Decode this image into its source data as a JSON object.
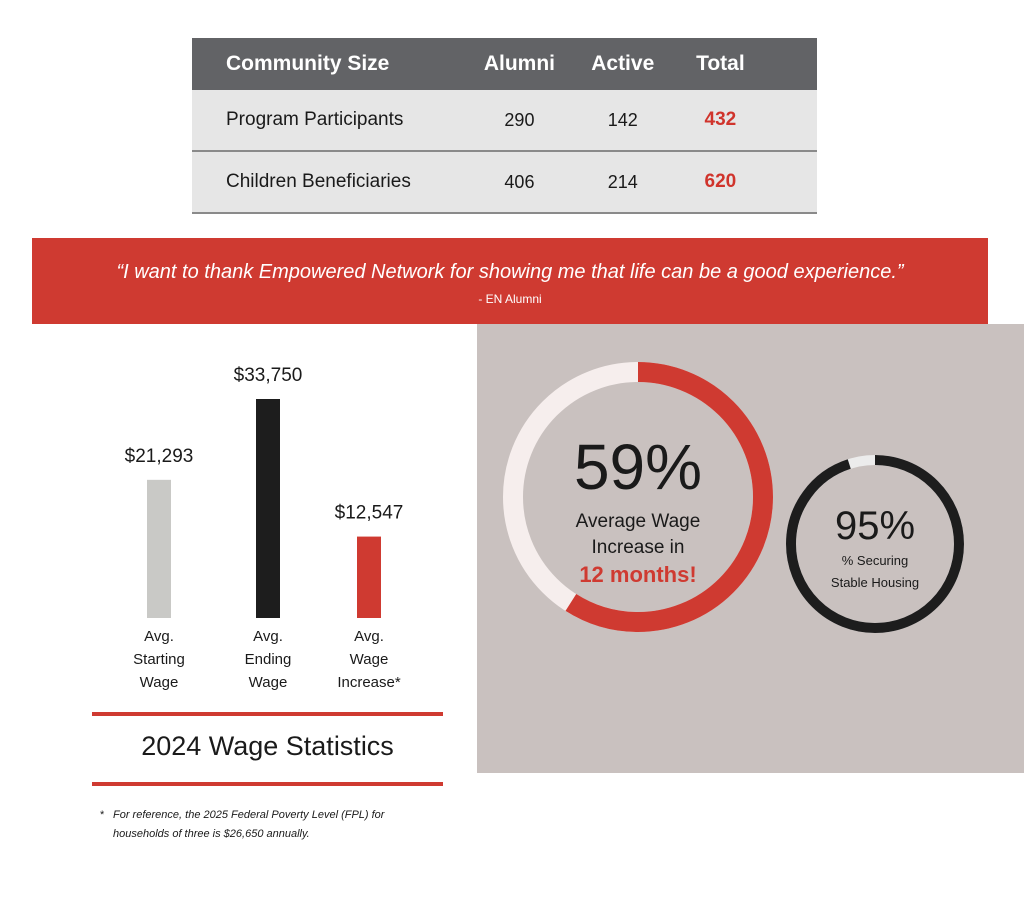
{
  "table": {
    "headers": [
      "Community Size",
      "Alumni",
      "Active",
      "Total"
    ],
    "rows": [
      [
        "Program Participants",
        "290",
        "142",
        "432"
      ],
      [
        "Children Beneficiaries",
        "406",
        "214",
        "620"
      ]
    ]
  },
  "quote": {
    "text": "“I want to thank Empowered Network for showing me that life can be a good experience.”",
    "attribution": "- EN Alumni"
  },
  "chart_data": [
    {
      "type": "bar",
      "title": "2024 Wage Statistics",
      "categories": [
        "Avg. Starting Wage",
        "Avg. Ending Wage",
        "Avg. Wage Increase*"
      ],
      "category_lines": [
        [
          "Avg.",
          "Starting",
          "Wage"
        ],
        [
          "Avg.",
          "Ending",
          "Wage"
        ],
        [
          "Avg.",
          "Wage",
          "Increase*"
        ]
      ],
      "values": [
        21293,
        33750,
        12547
      ],
      "value_labels": [
        "$21,293",
        "$33,750",
        "$12,547"
      ],
      "colors": [
        "#c9c9c6",
        "#1d1d1d",
        "#cf3a31"
      ],
      "ylim": [
        0,
        40000
      ],
      "grid": false
    },
    {
      "type": "pie",
      "title": "",
      "values": [
        59
      ],
      "value_label": "59%",
      "lines": [
        "Average Wage",
        "Increase in"
      ],
      "highlight": "12 months!",
      "colors": {
        "filled": "#cf3a31",
        "remainder": "#f6eeed"
      }
    },
    {
      "type": "pie",
      "title": "",
      "values": [
        95
      ],
      "value_label": "95%",
      "lines": [
        "% Securing",
        "Stable Housing"
      ],
      "colors": {
        "filled": "#1d1d1d",
        "remainder": "#ececec"
      }
    }
  ],
  "footnote": {
    "marker": "*",
    "text": "For reference, the 2025 Federal Poverty Level (FPL) for households of three is $26,650 annually."
  },
  "colors": {
    "accent_red": "#cf3a31",
    "header_gray": "#626366",
    "row_gray": "#e6e6e6",
    "panel_taupe": "#c9c1bf"
  }
}
